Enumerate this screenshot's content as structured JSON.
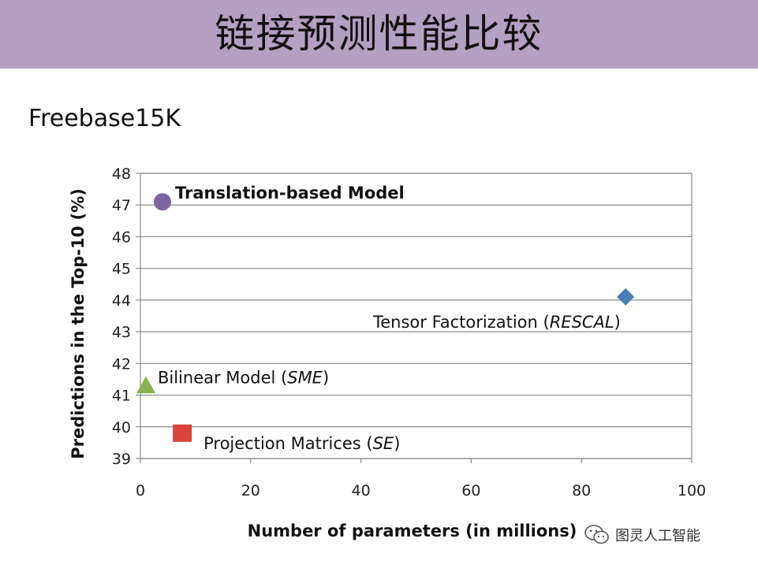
{
  "slide": {
    "title": "链接预测性能比较",
    "subtitle": "Freebase15K",
    "title_bar_color": "#b4a0c2"
  },
  "watermark": {
    "text": "图灵人工智能",
    "icon": "wechat-icon"
  },
  "chart_data": {
    "type": "scatter",
    "xlabel": "Number of parameters (in millions)",
    "ylabel": "Predictions in the Top-10 (%)",
    "xlim": [
      0,
      100
    ],
    "ylim": [
      39,
      48
    ],
    "xticks": [
      0,
      20,
      40,
      60,
      80,
      100
    ],
    "yticks": [
      39,
      40,
      41,
      42,
      43,
      44,
      45,
      46,
      47,
      48
    ],
    "grid": "horizontal",
    "legend": "none",
    "points": [
      {
        "name": "Translation-based Model",
        "x": 4,
        "y": 47.1,
        "marker": "circle",
        "color": "#8064a2",
        "label_parts": [
          {
            "text": "Translation-based Model",
            "bold": true
          }
        ]
      },
      {
        "name": "Tensor Factorization (RESCAL)",
        "x": 88,
        "y": 44.1,
        "marker": "diamond",
        "color": "#4a7fb5",
        "label_parts": [
          {
            "text": "Tensor Factorization ("
          },
          {
            "text": "RESCAL",
            "italic": true
          },
          {
            "text": ")"
          }
        ]
      },
      {
        "name": "Bilinear Model (SME)",
        "x": 1,
        "y": 41.3,
        "marker": "triangle",
        "color": "#8ab34f",
        "label_parts": [
          {
            "text": "Bilinear Model ("
          },
          {
            "text": "SME",
            "italic": true
          },
          {
            "text": ")"
          }
        ]
      },
      {
        "name": "Projection Matrices (SE)",
        "x": 7.6,
        "y": 39.8,
        "marker": "square",
        "color": "#d9443f",
        "label_parts": [
          {
            "text": "Projection Matrices ("
          },
          {
            "text": "SE",
            "italic": true
          },
          {
            "text": ")"
          }
        ]
      }
    ]
  }
}
